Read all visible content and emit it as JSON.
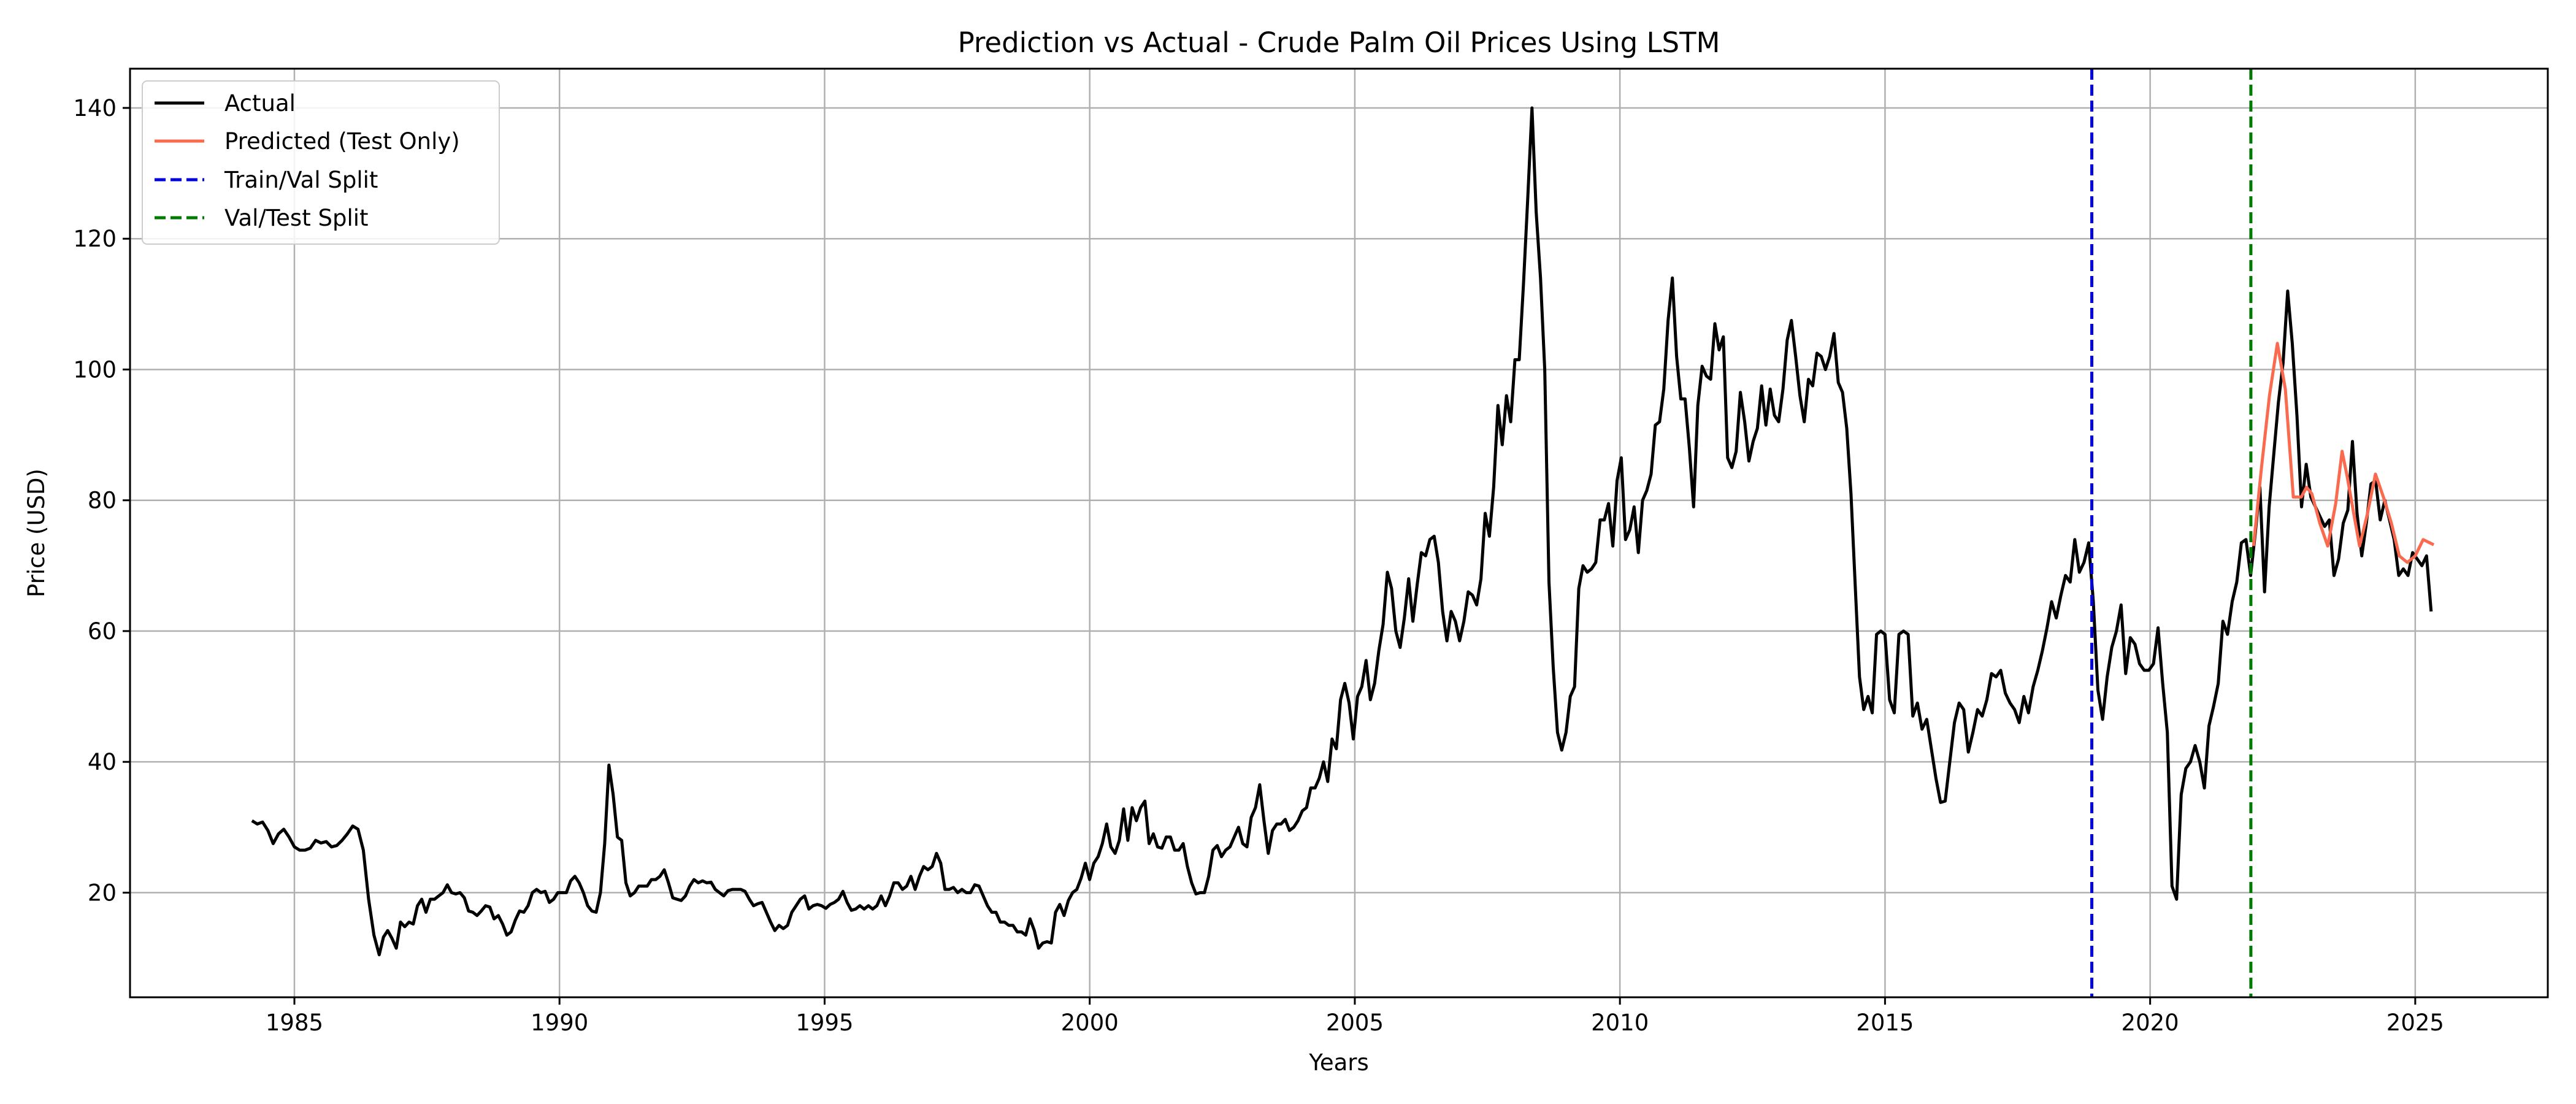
{
  "chart_data": {
    "type": "line",
    "title": "Prediction vs Actual - Crude Palm Oil Prices Using LSTM",
    "xlabel": "Years",
    "ylabel": "Price (USD)",
    "xlim": [
      1981.9,
      2027.5
    ],
    "ylim": [
      4,
      146
    ],
    "x_ticks": [
      1985,
      1990,
      1995,
      2000,
      2005,
      2010,
      2015,
      2020,
      2025
    ],
    "y_ticks": [
      20,
      40,
      60,
      80,
      100,
      120,
      140
    ],
    "grid": true,
    "legend_position": "top-left",
    "series": [
      {
        "name": "Actual",
        "color": "#000000",
        "style": "solid",
        "points": [
          [
            1984.2,
            31
          ],
          [
            1984.35,
            30
          ],
          [
            1984.5,
            30.5
          ],
          [
            1984.65,
            27.5
          ],
          [
            1984.8,
            29
          ],
          [
            1984.95,
            29.5
          ],
          [
            1985.15,
            27.5
          ],
          [
            1985.35,
            26.5
          ],
          [
            1985.55,
            27
          ],
          [
            1985.7,
            28
          ],
          [
            1985.9,
            27.5
          ],
          [
            1986.05,
            27
          ],
          [
            1986.25,
            28
          ],
          [
            1986.5,
            30.2
          ],
          [
            1986.65,
            29.5
          ],
          [
            1986.8,
            26.5
          ],
          [
            1986.95,
            19
          ],
          [
            1987.1,
            13
          ],
          [
            1987.2,
            10.5
          ],
          [
            1987.35,
            13
          ],
          [
            1987.5,
            14
          ],
          [
            1987.65,
            11.5
          ],
          [
            1987.8,
            15.5
          ],
          [
            1988.0,
            15
          ],
          [
            1988.15,
            15.5
          ],
          [
            1988.3,
            18
          ],
          [
            1988.45,
            19
          ],
          [
            1988.55,
            17
          ],
          [
            1988.7,
            19
          ],
          [
            1988.9,
            19.5
          ],
          [
            1989.1,
            21
          ],
          [
            1989.25,
            20
          ],
          [
            1989.45,
            20
          ],
          [
            1989.65,
            18
          ],
          [
            1989.85,
            16.5
          ],
          [
            1990.05,
            17.5
          ],
          [
            1990.2,
            16.5
          ],
          [
            1990.4,
            15.5
          ],
          [
            1990.55,
            13.5
          ],
          [
            1990.7,
            14.5
          ],
          [
            1990.85,
            17
          ],
          [
            1991.0,
            17.5
          ],
          [
            1991.2,
            20
          ],
          [
            1991.35,
            20.5
          ],
          [
            1991.5,
            19.5
          ],
          [
            1991.65,
            20
          ],
          [
            1991.85,
            18.5
          ],
          [
            1992.0,
            20
          ],
          [
            1992.2,
            20
          ],
          [
            1992.35,
            22
          ],
          [
            1992.5,
            22.5
          ],
          [
            1992.65,
            21.5
          ],
          [
            1992.85,
            19
          ],
          [
            1993.0,
            17.5
          ],
          [
            1993.15,
            17
          ],
          [
            1993.35,
            22
          ],
          [
            1993.5,
            27.5
          ],
          [
            1993.6,
            39.5
          ],
          [
            1993.75,
            35
          ],
          [
            1993.9,
            28.5
          ],
          [
            1994.05,
            28
          ],
          [
            1994.2,
            21.5
          ],
          [
            1994.35,
            19.5
          ],
          [
            1994.5,
            20
          ],
          [
            1994.65,
            21
          ],
          [
            1994.8,
            21
          ],
          [
            1995.0,
            22
          ],
          [
            1995.2,
            23.5
          ],
          [
            1995.35,
            20
          ],
          [
            1995.55,
            19
          ],
          [
            1995.75,
            19.5
          ],
          [
            1995.95,
            21.5
          ],
          [
            1996.15,
            22
          ],
          [
            1996.35,
            21.5
          ],
          [
            1996.55,
            21.5
          ],
          [
            1996.75,
            20.5
          ],
          [
            1996.95,
            19.5
          ],
          [
            1997.15,
            20.5
          ],
          [
            1997.35,
            20.5
          ],
          [
            1997.6,
            19.5
          ],
          [
            1997.8,
            17.5
          ],
          [
            1998.0,
            18.5
          ],
          [
            1998.2,
            16
          ],
          [
            1998.4,
            14.5
          ],
          [
            1998.55,
            13.5
          ],
          [
            1998.7,
            15
          ],
          [
            1998.9,
            14.5
          ],
          [
            1999.05,
            16.5
          ],
          [
            1999.25,
            18
          ],
          [
            1999.45,
            19.5
          ],
          [
            1999.6,
            17.5
          ],
          [
            1999.8,
            18
          ],
          [
            2000.0,
            17.5
          ],
          [
            2000.2,
            18
          ],
          [
            2000.4,
            18.5
          ],
          [
            2000.6,
            20
          ],
          [
            2000.8,
            17.5
          ],
          [
            2001.0,
            18
          ],
          [
            2001.2,
            17.5
          ],
          [
            2001.4,
            18
          ],
          [
            2001.55,
            19
          ],
          [
            1995.0,
            22
          ]
        ]
      }
    ]
  }
}
